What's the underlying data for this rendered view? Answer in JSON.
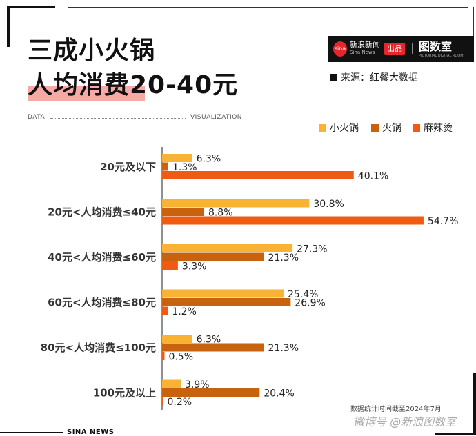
{
  "header": {
    "title_line1": "三成小火锅",
    "title_line2": "人均消费20-40元",
    "source": "来源：红餐大数据",
    "data_label": "DATA",
    "visualization_label": "VISUALIZATION"
  },
  "logo": {
    "sina_mark": "sina",
    "sina_name": "新浪新闻",
    "sina_sub": "Sina News",
    "chupin": "出品",
    "tushu": "图数室",
    "tushu_sub": "PICTORIAL DIGITAL ROOM"
  },
  "footer": {
    "note": "数据统计时间截至2024年7月",
    "brand": "SINA NEWS",
    "weibo": "微博号 @新浪图数室"
  },
  "colors": {
    "series": [
      "#f9b233",
      "#c8620c",
      "#f05a14"
    ],
    "highlight": "#f6a9a5"
  },
  "chart_data": {
    "type": "bar",
    "orientation": "horizontal",
    "categories": [
      "20元及以下",
      "20元<人均消费≤40元",
      "40元<人均消费≤60元",
      "60元<人均消费≤80元",
      "80元<人均消费≤100元",
      "100元及以上"
    ],
    "series": [
      {
        "name": "小火锅",
        "values": [
          6.3,
          30.8,
          27.3,
          25.4,
          6.3,
          3.9
        ],
        "labels": [
          "6.3%",
          "30.8%",
          "27.3%",
          "25.4%",
          "6.3%",
          "3.9%"
        ]
      },
      {
        "name": "火锅",
        "values": [
          1.3,
          8.8,
          21.3,
          26.9,
          21.3,
          20.4
        ],
        "labels": [
          "1.3%",
          "8.8%",
          "21.3%",
          "26.9%",
          "21.3%",
          "20.4%"
        ]
      },
      {
        "name": "麻辣烫",
        "values": [
          40.1,
          54.7,
          3.3,
          1.2,
          0.5,
          0.2
        ],
        "labels": [
          "40.1%",
          "54.7%",
          "3.3%",
          "1.2%",
          "0.5%",
          "0.2%"
        ]
      }
    ],
    "unit": "%",
    "xlim": [
      0,
      55
    ],
    "legend_position": "top-right",
    "grid": false
  }
}
